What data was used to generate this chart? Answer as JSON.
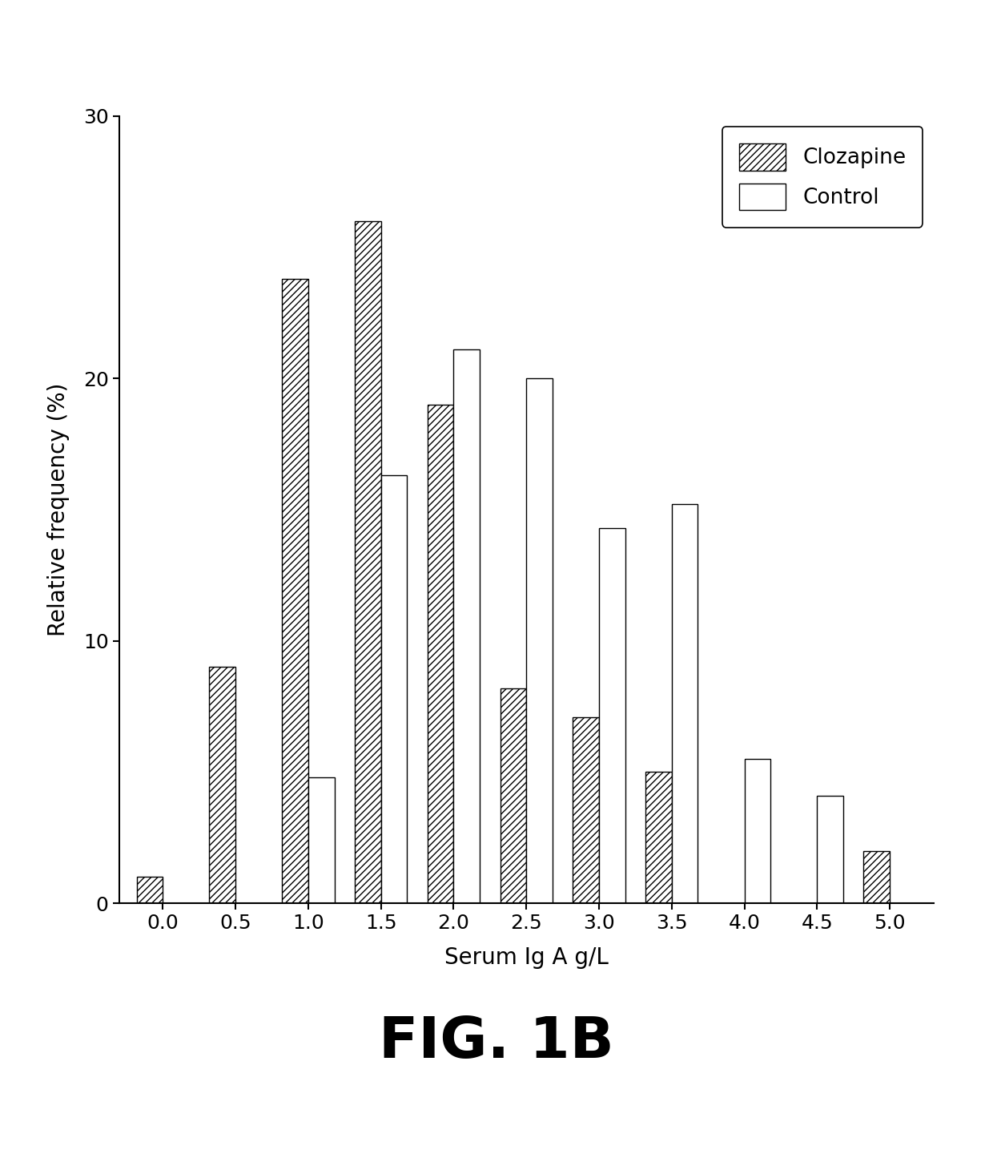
{
  "x_labels": [
    "0.0",
    "0.5",
    "1.0",
    "1.5",
    "2.0",
    "2.5",
    "3.0",
    "3.5",
    "4.0",
    "4.5",
    "5.0"
  ],
  "x_values": [
    0.0,
    0.5,
    1.0,
    1.5,
    2.0,
    2.5,
    3.0,
    3.5,
    4.0,
    4.5,
    5.0
  ],
  "clozapine": [
    1.0,
    9.0,
    23.8,
    26.0,
    19.0,
    8.2,
    7.1,
    5.0,
    0.0,
    0.0,
    2.0
  ],
  "control": [
    0.0,
    0.0,
    4.8,
    16.3,
    21.1,
    20.0,
    14.3,
    15.2,
    5.5,
    4.1,
    0.0
  ],
  "ylabel": "Relative frequency (%)",
  "xlabel": "Serum Ig A g/L",
  "ylim": [
    0,
    30
  ],
  "yticks": [
    0,
    10,
    20,
    30
  ],
  "bar_width": 0.18,
  "legend_labels": [
    "Clozapine",
    "Control"
  ],
  "fig_label": "FIG. 1B",
  "background_color": "#ffffff",
  "bar_edge_color": "#000000",
  "hatch_pattern": "////",
  "label_fontsize": 20,
  "tick_fontsize": 18,
  "legend_fontsize": 19,
  "fig_label_fontsize": 52
}
